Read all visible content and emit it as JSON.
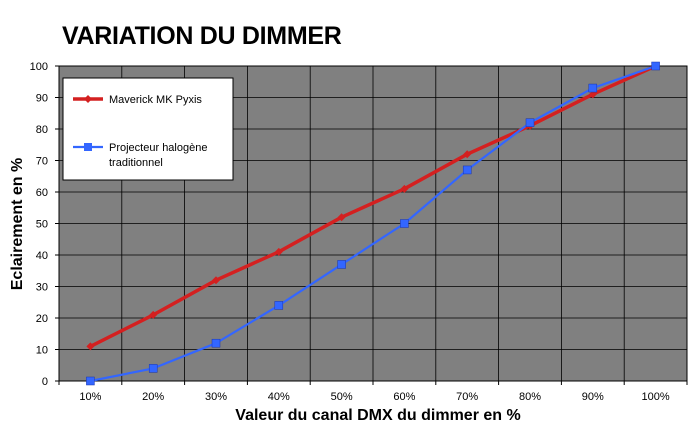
{
  "chart_data": {
    "type": "line",
    "title": "VARIATION DU DIMMER",
    "xlabel": "Valeur du canal DMX du dimmer en %",
    "ylabel": "Eclairement en %",
    "categories": [
      "10%",
      "20%",
      "30%",
      "40%",
      "50%",
      "60%",
      "70%",
      "80%",
      "90%",
      "100%"
    ],
    "ylim": [
      0,
      100
    ],
    "yticks": [
      0,
      10,
      20,
      30,
      40,
      50,
      60,
      70,
      80,
      90,
      100
    ],
    "grid": true,
    "legend_position": "top-left",
    "plot_background": "#808080",
    "series": [
      {
        "name": "Maverick MK Pyxis",
        "name_lines": [
          "Maverick MK Pyxis"
        ],
        "color": "#d42020",
        "marker": "diamond",
        "values": [
          11,
          21,
          32,
          41,
          52,
          61,
          72,
          81,
          91,
          100
        ]
      },
      {
        "name": "Projecteur halogène traditionnel",
        "name_lines": [
          "Projecteur halogène",
          "traditionnel"
        ],
        "color": "#3366ff",
        "marker": "square",
        "values": [
          0,
          4,
          12,
          24,
          37,
          50,
          67,
          82,
          93,
          100
        ]
      }
    ]
  }
}
